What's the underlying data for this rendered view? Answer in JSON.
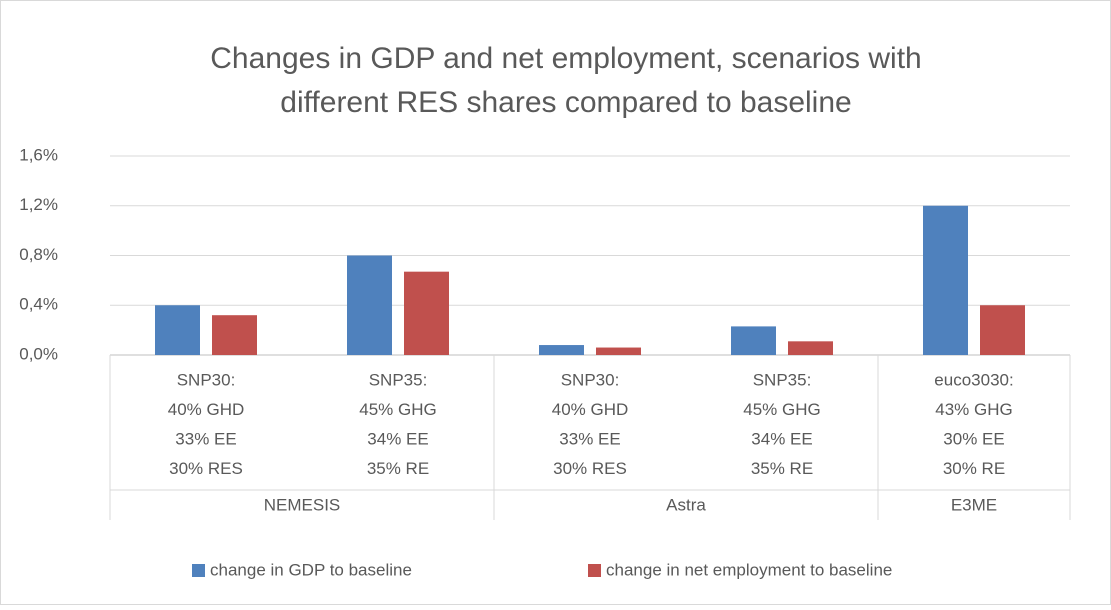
{
  "chart_data": {
    "type": "bar",
    "title": [
      "Changes in GDP and net employment, scenarios with",
      "different RES shares compared to baseline"
    ],
    "groups": [
      {
        "name": "NEMESIS",
        "categories": [
          [
            "SNP30:",
            "40% GHD",
            "33% EE",
            "30% RES"
          ],
          [
            "SNP35:",
            "45% GHG",
            "34% EE",
            "35% RE"
          ]
        ]
      },
      {
        "name": "Astra",
        "categories": [
          [
            "SNP30:",
            "40% GHD",
            "33% EE",
            "30% RES"
          ],
          [
            "SNP35:",
            "45% GHG",
            "34% EE",
            "35% RE"
          ]
        ]
      },
      {
        "name": "E3ME",
        "categories": [
          [
            "euco3030:",
            "43% GHG",
            "30% EE",
            "30% RE"
          ]
        ]
      }
    ],
    "series": [
      {
        "name": "change in GDP to baseline",
        "color": "#4f81bd",
        "values": [
          0.4,
          0.8,
          0.08,
          0.23,
          1.2
        ]
      },
      {
        "name": "change in net employment to baseline",
        "color": "#c0504d",
        "values": [
          0.32,
          0.67,
          0.06,
          0.11,
          0.4
        ]
      }
    ],
    "ylim": [
      0,
      1.6
    ],
    "yticks": [
      {
        "value": 0,
        "label": "0,0%"
      },
      {
        "value": 0.4,
        "label": "0,4%"
      },
      {
        "value": 0.8,
        "label": "0,8%"
      },
      {
        "value": 1.2,
        "label": "1,2%"
      },
      {
        "value": 1.6,
        "label": "1,6%"
      }
    ],
    "grid": true,
    "legend": "bottom"
  }
}
